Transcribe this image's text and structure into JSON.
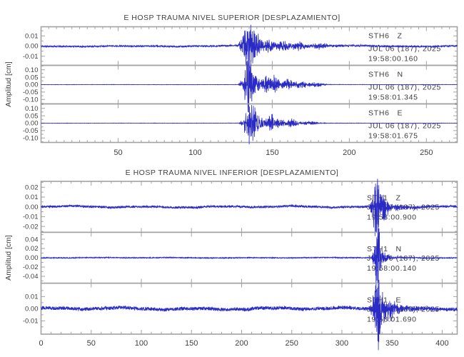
{
  "figure": {
    "bg_color": "#ffffff",
    "trace_color": "#2a2ac4",
    "frame_color": "#a2a2a2",
    "text_color": "#404040"
  },
  "chart_data": [
    {
      "type": "line",
      "title": "E HOSP TRAUMA NIVEL SUPERIOR [DESPLAZAMIENTO]",
      "ylabel": "Amplitud [cm]",
      "xlabel": "",
      "grid": false,
      "xlim": [
        0,
        270
      ],
      "xtick_vals": [
        50,
        100,
        150,
        200,
        250
      ],
      "xtick_labels": [
        "50",
        "100",
        "150",
        "200",
        "250"
      ],
      "x_minor_step": 5,
      "n_points": 2400,
      "traces": [
        {
          "station": "STH6",
          "component": "Z",
          "date": "JUL 06 (187), 2025",
          "time": "19:58:00.160",
          "ylim_half": 0.019,
          "ytick_vals": [
            0.01,
            0.0,
            -0.01
          ],
          "ytick_labels": [
            "0.01",
            "0.00",
            "-0.01"
          ],
          "signal": {
            "seed": 11,
            "noise": 0.00075,
            "wander": 0.0005,
            "event": {
              "onset": 126,
              "peak_time": 134.5,
              "peak_amp": 0.024,
              "decay": 6,
              "freq": 1.8,
              "coda_amp": 0.004,
              "coda_decay": 35
            },
            "bursts": [
              {
                "t": 148,
                "amp": 0.006,
                "w": 2.5
              },
              {
                "t": 157,
                "amp": 0.005,
                "w": 4
              },
              {
                "t": 168,
                "amp": 0.0035,
                "w": 5
              },
              {
                "t": 181,
                "amp": 0.002,
                "w": 6
              }
            ]
          }
        },
        {
          "station": "STH6",
          "component": "N",
          "date": "JUL 06 (187), 2025",
          "time": "19:58:01.345",
          "ylim_half": 0.13,
          "ytick_vals": [
            0.1,
            0.05,
            0.0,
            -0.05,
            -0.1
          ],
          "ytick_labels": [
            "0.10",
            "0.05",
            "0.00",
            "-0.05",
            "-0.10"
          ],
          "signal": {
            "seed": 22,
            "noise": 0.0009,
            "wander": 0.0004,
            "event": {
              "onset": 127,
              "peak_time": 134.8,
              "peak_amp": 0.185,
              "decay": 4,
              "freq": 2.0,
              "coda_amp": 0.02,
              "coda_decay": 18
            },
            "bursts": [
              {
                "t": 146,
                "amp": 0.045,
                "w": 2.5
              },
              {
                "t": 151.5,
                "amp": 0.05,
                "w": 3
              },
              {
                "t": 160,
                "amp": 0.035,
                "w": 4
              },
              {
                "t": 168,
                "amp": 0.02,
                "w": 5
              },
              {
                "t": 178,
                "amp": 0.012,
                "w": 6
              }
            ]
          }
        },
        {
          "station": "STH6",
          "component": "E",
          "date": "JUL 06 (187), 2025",
          "time": "19:58:01.675",
          "ylim_half": 0.13,
          "ytick_vals": [
            0.1,
            0.05,
            0.0,
            -0.05,
            -0.1
          ],
          "ytick_labels": [
            "0.10",
            "0.05",
            "0.00",
            "-0.05",
            "-0.10"
          ],
          "signal": {
            "seed": 33,
            "noise": 0.0009,
            "wander": 0.0004,
            "event": {
              "onset": 127.5,
              "peak_time": 136,
              "peak_amp": 0.175,
              "decay": 4,
              "freq": 2.0,
              "coda_amp": 0.018,
              "coda_decay": 18
            },
            "bursts": [
              {
                "t": 149,
                "amp": 0.05,
                "w": 3
              },
              {
                "t": 155,
                "amp": 0.03,
                "w": 3
              },
              {
                "t": 163,
                "amp": 0.025,
                "w": 4
              },
              {
                "t": 174,
                "amp": 0.012,
                "w": 5
              }
            ]
          }
        }
      ]
    },
    {
      "type": "line",
      "title": "E HOSP TRAUMA NIVEL INFERIOR [DESPLAZAMIENTO]",
      "ylabel": "Amplitud [cm]",
      "xlabel": "",
      "grid": false,
      "xlim": [
        0,
        415
      ],
      "xtick_vals": [
        0,
        50,
        100,
        150,
        200,
        250,
        300,
        350,
        400
      ],
      "xtick_labels": [
        "0",
        "50",
        "100",
        "150",
        "200",
        "250",
        "300",
        "350",
        "400"
      ],
      "x_minor_step": 10,
      "n_points": 2800,
      "traces": [
        {
          "station": "STH1",
          "component": "Z",
          "date": "JUL 06 (187), 2025",
          "time": "19:58:00.900",
          "ylim_half": 0.026,
          "ytick_vals": [
            0.02,
            0.01,
            0.0,
            -0.01,
            -0.02
          ],
          "ytick_labels": [
            "0.02",
            "0.01",
            "0.00",
            "-0.01",
            "-0.02"
          ],
          "signal": {
            "seed": 44,
            "noise": 0.0011,
            "wander": 0.0008,
            "event": {
              "onset": 326,
              "peak_time": 334,
              "peak_amp": 0.037,
              "decay": 4.5,
              "freq": 2.2,
              "coda_amp": 0.005,
              "coda_decay": 25
            },
            "bursts": [
              {
                "t": 342,
                "amp": 0.008,
                "w": 4
              }
            ]
          }
        },
        {
          "station": "STH1",
          "component": "N",
          "date": "JUL 06 (187), 2025",
          "time": "19:58:00.140",
          "ylim_half": 0.055,
          "ytick_vals": [
            0.04,
            0.02,
            0.0,
            -0.02,
            -0.04
          ],
          "ytick_labels": [
            "0.04",
            "0.02",
            "0.00",
            "-0.02",
            "-0.04"
          ],
          "signal": {
            "seed": 55,
            "noise": 0.0009,
            "wander": 0.0005,
            "event": {
              "onset": 329,
              "peak_time": 335.5,
              "peak_amp": 0.095,
              "decay": 2.2,
              "freq": 2.2,
              "coda_amp": 0.004,
              "coda_decay": 20
            },
            "bursts": [
              {
                "t": 344,
                "amp": 0.007,
                "w": 4
              }
            ]
          }
        },
        {
          "station": "STH1",
          "component": "E",
          "date": "JUL 06 (187), 2025",
          "time": "19:58:01.690",
          "ylim_half": 0.021,
          "ytick_vals": [
            0.01,
            0.0,
            -0.01
          ],
          "ytick_labels": [
            "0.01",
            "0.00",
            "-0.01"
          ],
          "signal": {
            "seed": 66,
            "noise": 0.0014,
            "wander": 0.0009,
            "event": {
              "onset": 325,
              "peak_time": 336.5,
              "peak_amp": 0.029,
              "decay": 5,
              "freq": 2.0,
              "coda_amp": 0.004,
              "coda_decay": 30
            },
            "bursts": [
              {
                "t": 350,
                "amp": 0.005,
                "w": 6
              }
            ]
          }
        }
      ]
    }
  ]
}
